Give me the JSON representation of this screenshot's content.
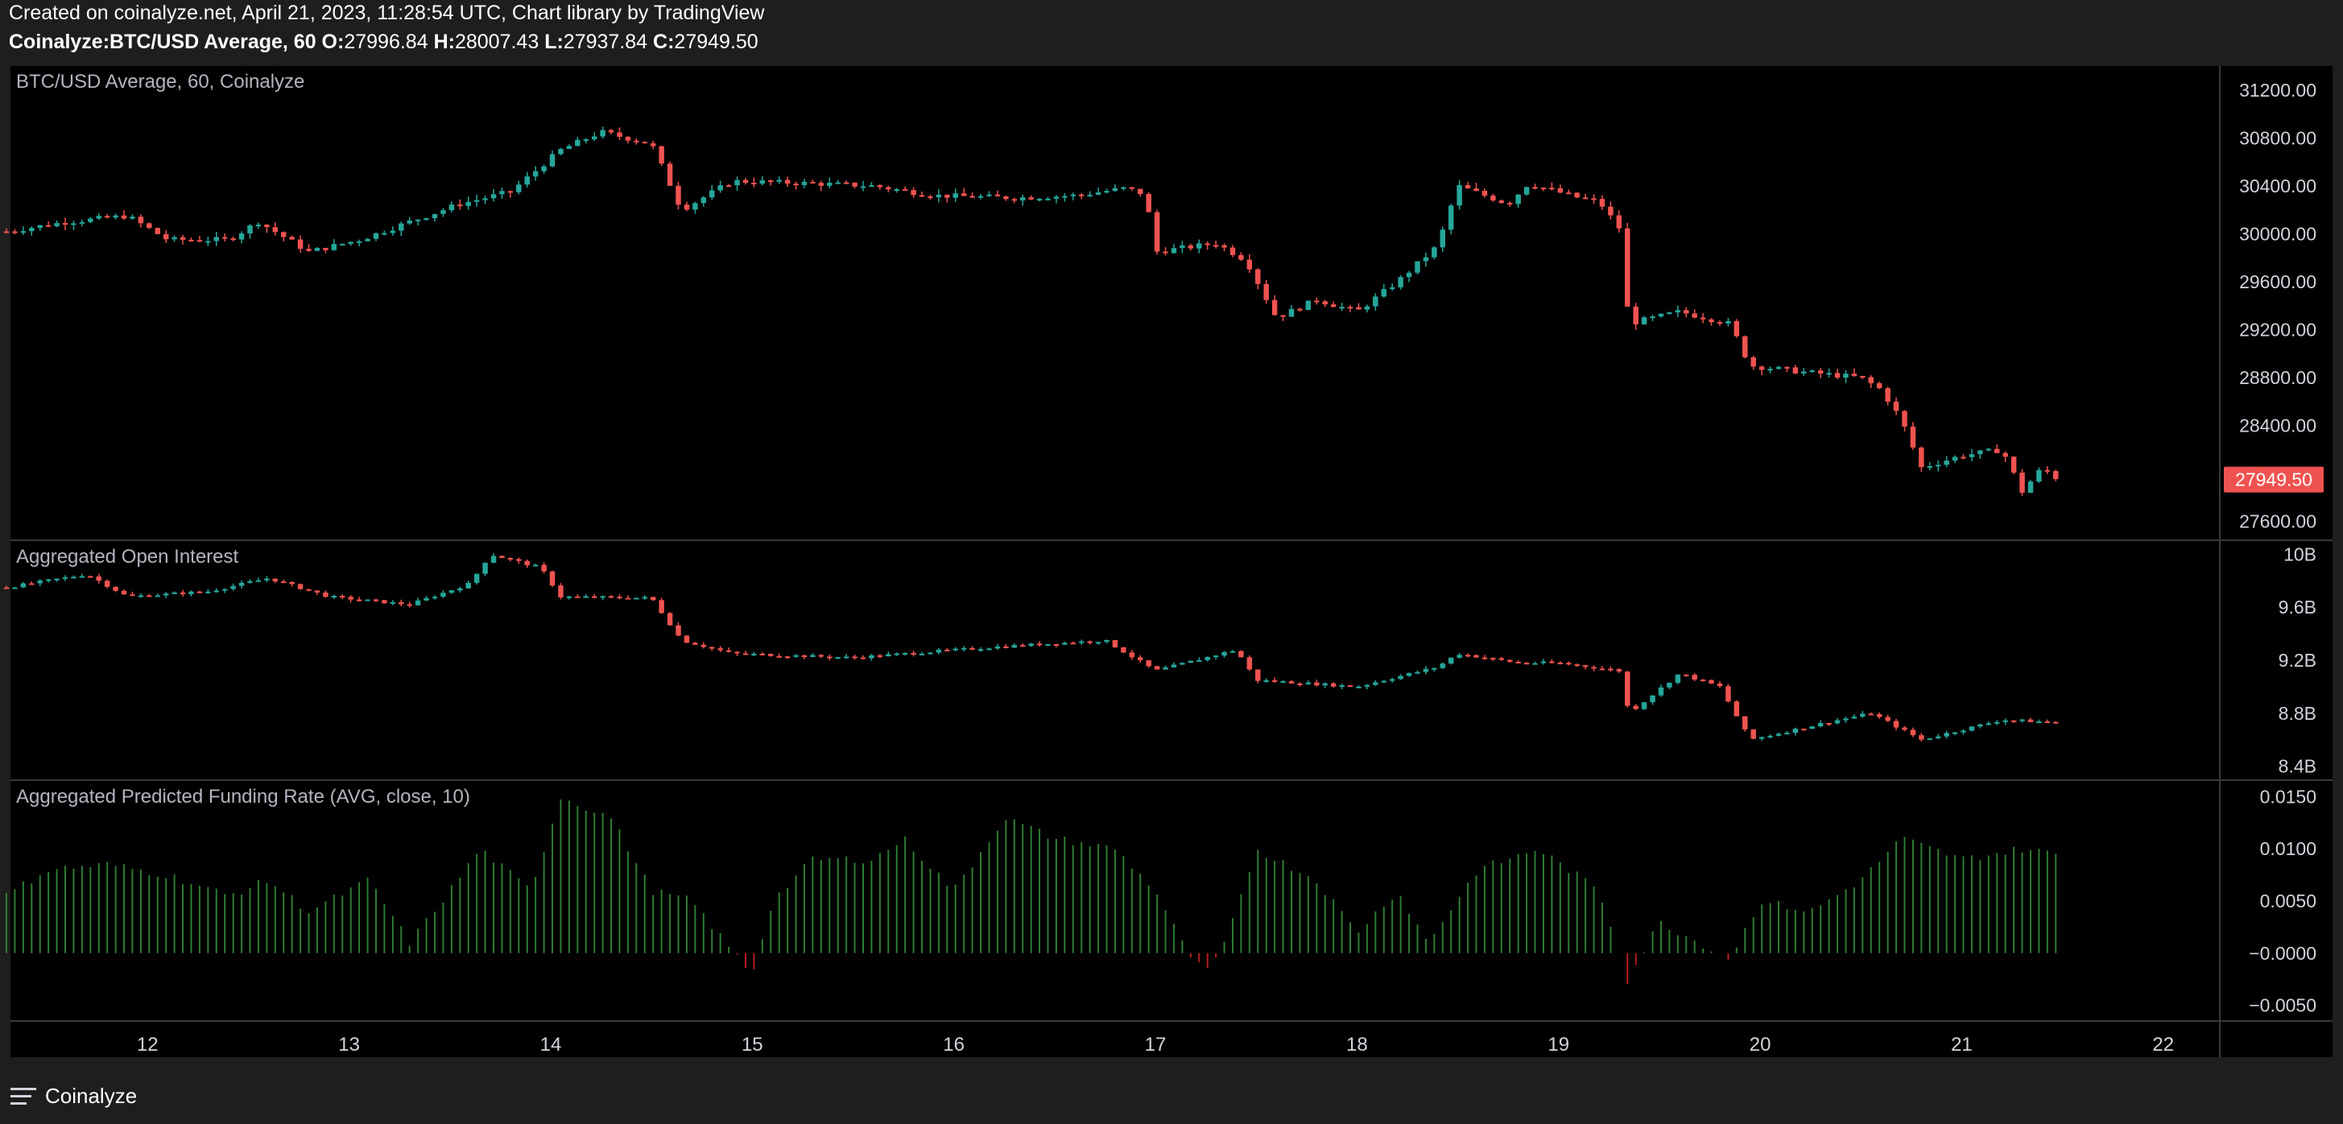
{
  "header": {
    "created": "Created on coinalyze.net, April 21, 2023, 11:28:54 UTC, Chart library by TradingView",
    "symbol": "Coinalyze:BTC/USD Average, 60",
    "o_label": "O:",
    "o": "27996.84",
    "h_label": "H:",
    "h": "28007.43",
    "l_label": "L:",
    "l": "27937.84",
    "c_label": "C:",
    "c": "27949.50"
  },
  "footer": {
    "brand": "Coinalyze",
    "icon": "menu-icon"
  },
  "colors": {
    "up": "#26a69a",
    "down": "#ef5350",
    "funding_pos": "#2e7d32",
    "funding_neg": "#b71c1c",
    "background": "#000000",
    "frame": "#1e1e1e",
    "grid": "#2a2a2a",
    "text": "#d1d4dc"
  },
  "chart_data": [
    {
      "type": "candlestick",
      "title": "BTC/USD Average, 60, Coinalyze",
      "ylim": [
        27450,
        31400
      ],
      "y_ticks": [
        "31200.00",
        "30800.00",
        "30400.00",
        "30000.00",
        "29600.00",
        "29200.00",
        "28800.00",
        "28400.00",
        "27600.00"
      ],
      "y_tick_values": [
        31200,
        30800,
        30400,
        30000,
        29600,
        29200,
        28800,
        28400,
        27600
      ],
      "last_price_label": "27949.50",
      "last_price": 27949.5,
      "close_path": [
        {
          "day": 11.3,
          "v": 30020
        },
        {
          "day": 11.6,
          "v": 30100
        },
        {
          "day": 11.9,
          "v": 30150
        },
        {
          "day": 12.1,
          "v": 29950
        },
        {
          "day": 12.4,
          "v": 29950
        },
        {
          "day": 12.55,
          "v": 30100
        },
        {
          "day": 12.8,
          "v": 29850
        },
        {
          "day": 13.05,
          "v": 29950
        },
        {
          "day": 13.3,
          "v": 30100
        },
        {
          "day": 13.55,
          "v": 30250
        },
        {
          "day": 13.8,
          "v": 30350
        },
        {
          "day": 14.05,
          "v": 30700
        },
        {
          "day": 14.25,
          "v": 30850
        },
        {
          "day": 14.5,
          "v": 30750
        },
        {
          "day": 14.65,
          "v": 30200
        },
        {
          "day": 14.9,
          "v": 30440
        },
        {
          "day": 15.3,
          "v": 30420
        },
        {
          "day": 15.6,
          "v": 30400
        },
        {
          "day": 15.9,
          "v": 30320
        },
        {
          "day": 16.3,
          "v": 30300
        },
        {
          "day": 16.6,
          "v": 30320
        },
        {
          "day": 16.85,
          "v": 30380
        },
        {
          "day": 16.95,
          "v": 30330
        },
        {
          "day": 17.0,
          "v": 29850
        },
        {
          "day": 17.3,
          "v": 29920
        },
        {
          "day": 17.45,
          "v": 29780
        },
        {
          "day": 17.6,
          "v": 29300
        },
        {
          "day": 17.8,
          "v": 29450
        },
        {
          "day": 18.0,
          "v": 29350
        },
        {
          "day": 18.2,
          "v": 29600
        },
        {
          "day": 18.4,
          "v": 29900
        },
        {
          "day": 18.5,
          "v": 30400
        },
        {
          "day": 18.75,
          "v": 30250
        },
        {
          "day": 18.85,
          "v": 30420
        },
        {
          "day": 19.1,
          "v": 30300
        },
        {
          "day": 19.2,
          "v": 30270
        },
        {
          "day": 19.3,
          "v": 30050
        },
        {
          "day": 19.35,
          "v": 29250
        },
        {
          "day": 19.6,
          "v": 29350
        },
        {
          "day": 19.85,
          "v": 29250
        },
        {
          "day": 19.95,
          "v": 28900
        },
        {
          "day": 20.2,
          "v": 28850
        },
        {
          "day": 20.5,
          "v": 28800
        },
        {
          "day": 20.6,
          "v": 28700
        },
        {
          "day": 20.7,
          "v": 28450
        },
        {
          "day": 20.8,
          "v": 28050
        },
        {
          "day": 21.0,
          "v": 28150
        },
        {
          "day": 21.2,
          "v": 28200
        },
        {
          "day": 21.3,
          "v": 27850
        },
        {
          "day": 21.4,
          "v": 28050
        },
        {
          "day": 21.48,
          "v": 27949.5
        }
      ]
    },
    {
      "type": "candlestick",
      "title": "Aggregated Open Interest",
      "ylim": [
        8.3,
        10.1
      ],
      "y_ticks": [
        "10B",
        "9.6B",
        "9.2B",
        "8.8B",
        "8.4B"
      ],
      "y_tick_values": [
        10,
        9.6,
        9.2,
        8.8,
        8.4
      ],
      "close_path": [
        {
          "day": 11.3,
          "v": 9.75
        },
        {
          "day": 11.7,
          "v": 9.85
        },
        {
          "day": 11.9,
          "v": 9.68
        },
        {
          "day": 12.3,
          "v": 9.72
        },
        {
          "day": 12.6,
          "v": 9.82
        },
        {
          "day": 12.9,
          "v": 9.68
        },
        {
          "day": 13.3,
          "v": 9.62
        },
        {
          "day": 13.6,
          "v": 9.78
        },
        {
          "day": 13.7,
          "v": 10.0
        },
        {
          "day": 13.95,
          "v": 9.9
        },
        {
          "day": 14.05,
          "v": 9.68
        },
        {
          "day": 14.5,
          "v": 9.67
        },
        {
          "day": 14.65,
          "v": 9.35
        },
        {
          "day": 14.9,
          "v": 9.25
        },
        {
          "day": 15.5,
          "v": 9.22
        },
        {
          "day": 16.2,
          "v": 9.3
        },
        {
          "day": 16.75,
          "v": 9.35
        },
        {
          "day": 17.0,
          "v": 9.12
        },
        {
          "day": 17.4,
          "v": 9.28
        },
        {
          "day": 17.5,
          "v": 9.05
        },
        {
          "day": 18.0,
          "v": 9.0
        },
        {
          "day": 18.4,
          "v": 9.15
        },
        {
          "day": 18.5,
          "v": 9.25
        },
        {
          "day": 18.8,
          "v": 9.18
        },
        {
          "day": 19.0,
          "v": 9.18
        },
        {
          "day": 19.3,
          "v": 9.12
        },
        {
          "day": 19.35,
          "v": 8.8
        },
        {
          "day": 19.6,
          "v": 9.1
        },
        {
          "day": 19.8,
          "v": 9.0
        },
        {
          "day": 19.95,
          "v": 8.6
        },
        {
          "day": 20.3,
          "v": 8.72
        },
        {
          "day": 20.55,
          "v": 8.8
        },
        {
          "day": 20.8,
          "v": 8.6
        },
        {
          "day": 21.2,
          "v": 8.75
        },
        {
          "day": 21.48,
          "v": 8.73
        }
      ]
    },
    {
      "type": "bar",
      "title": "Aggregated Predicted Funding Rate (AVG, close, 10)",
      "ylim": [
        -0.0065,
        0.0165
      ],
      "y_ticks": [
        "0.0150",
        "0.0100",
        "0.0050",
        "−0.0000",
        "−0.0050"
      ],
      "y_tick_values": [
        0.015,
        0.01,
        0.005,
        0,
        -0.005
      ],
      "path": [
        {
          "day": 11.3,
          "v": 0.0055
        },
        {
          "day": 11.5,
          "v": 0.008
        },
        {
          "day": 11.8,
          "v": 0.0085
        },
        {
          "day": 12.1,
          "v": 0.0075
        },
        {
          "day": 12.4,
          "v": 0.0055
        },
        {
          "day": 12.6,
          "v": 0.007
        },
        {
          "day": 12.8,
          "v": 0.004
        },
        {
          "day": 13.1,
          "v": 0.007
        },
        {
          "day": 13.3,
          "v": 0.001
        },
        {
          "day": 13.5,
          "v": 0.006
        },
        {
          "day": 13.65,
          "v": 0.01
        },
        {
          "day": 13.9,
          "v": 0.006
        },
        {
          "day": 14.05,
          "v": 0.015
        },
        {
          "day": 14.3,
          "v": 0.013
        },
        {
          "day": 14.5,
          "v": 0.006
        },
        {
          "day": 14.7,
          "v": 0.005
        },
        {
          "day": 14.9,
          "v": 0.0002
        },
        {
          "day": 15.0,
          "v": -0.002
        },
        {
          "day": 15.1,
          "v": 0.005
        },
        {
          "day": 15.3,
          "v": 0.009
        },
        {
          "day": 15.6,
          "v": 0.009
        },
        {
          "day": 15.75,
          "v": 0.011
        },
        {
          "day": 16.0,
          "v": 0.006
        },
        {
          "day": 16.25,
          "v": 0.013
        },
        {
          "day": 16.5,
          "v": 0.011
        },
        {
          "day": 16.8,
          "v": 0.01
        },
        {
          "day": 17.0,
          "v": 0.006
        },
        {
          "day": 17.15,
          "v": 0.0003
        },
        {
          "day": 17.25,
          "v": -0.002
        },
        {
          "day": 17.35,
          "v": 0.001
        },
        {
          "day": 17.5,
          "v": 0.01
        },
        {
          "day": 17.8,
          "v": 0.007
        },
        {
          "day": 18.0,
          "v": 0.002
        },
        {
          "day": 18.2,
          "v": 0.006
        },
        {
          "day": 18.35,
          "v": 0.001
        },
        {
          "day": 18.6,
          "v": 0.008
        },
        {
          "day": 18.9,
          "v": 0.01
        },
        {
          "day": 19.2,
          "v": 0.006
        },
        {
          "day": 19.3,
          "v": 0.0003
        },
        {
          "day": 19.33,
          "v": -0.003
        },
        {
          "day": 19.5,
          "v": 0.003
        },
        {
          "day": 19.7,
          "v": 0.001
        },
        {
          "day": 19.85,
          "v": -0.0005
        },
        {
          "day": 20.0,
          "v": 0.005
        },
        {
          "day": 20.25,
          "v": 0.004
        },
        {
          "day": 20.5,
          "v": 0.007
        },
        {
          "day": 20.7,
          "v": 0.011
        },
        {
          "day": 21.0,
          "v": 0.009
        },
        {
          "day": 21.3,
          "v": 0.01
        },
        {
          "day": 21.48,
          "v": 0.0095
        }
      ]
    }
  ],
  "x_axis": {
    "ticks": [
      "12",
      "13",
      "14",
      "15",
      "16",
      "17",
      "18",
      "19",
      "20",
      "21",
      "22"
    ],
    "tick_values": [
      12,
      13,
      14,
      15,
      16,
      17,
      18,
      19,
      20,
      21,
      22
    ],
    "range": [
      11.32,
      22.6
    ],
    "type": "day-of-month"
  }
}
